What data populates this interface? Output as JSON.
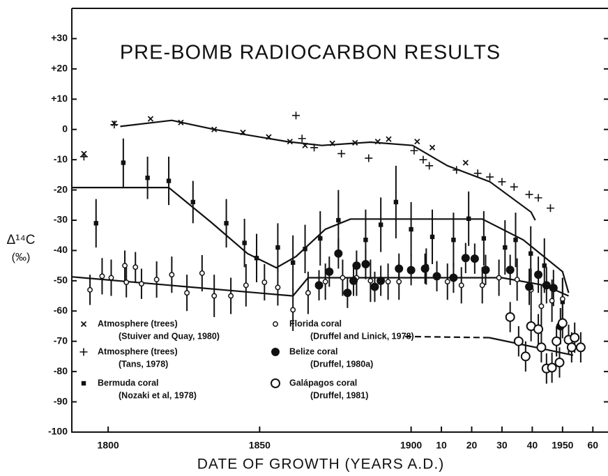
{
  "chart_data": {
    "type": "scatter",
    "title": "PRE-BOMB RADIOCARBON RESULTS",
    "ylabel": "Δ¹⁴C",
    "yunit": "(‰)",
    "xlabel": "DATE OF GROWTH (YEARS A.D.)",
    "xlim": [
      1788,
      1965
    ],
    "ylim": [
      -100,
      40
    ],
    "xticks": [
      1800,
      1850,
      1900,
      {
        "value": 1910,
        "label": "10"
      },
      {
        "value": 1920,
        "label": "20"
      },
      {
        "value": 1930,
        "label": "30"
      },
      {
        "value": 1940,
        "label": "40"
      },
      1950,
      {
        "value": 1960,
        "label": "60"
      }
    ],
    "yticks": [
      {
        "value": 30,
        "label": "+30"
      },
      {
        "value": 20,
        "label": "+20"
      },
      {
        "value": 10,
        "label": "+10"
      },
      0,
      -10,
      -20,
      -30,
      -40,
      -50,
      -60,
      -70,
      -80,
      -90,
      -100
    ],
    "series": [
      {
        "name": "Atmosphere (trees)",
        "source": "(Stuiver and Quay, 1980)",
        "marker": "x",
        "color": "#111111",
        "x": [
          1792,
          1802,
          1814,
          1824,
          1835,
          1844.5,
          1853,
          1860,
          1865,
          1874,
          1881.5,
          1889,
          1892.6,
          1902,
          1907,
          1918
        ],
        "y": [
          -8,
          2,
          3.5,
          2.3,
          0,
          -1,
          -2.5,
          -4,
          -5.3,
          -4.6,
          -4.4,
          -4,
          -3.2,
          -4,
          -6,
          -11
        ]
      },
      {
        "name": "Atmosphere (trees)",
        "source": "(Tans, 1978)",
        "marker": "plus",
        "color": "#111111",
        "x": [
          1792,
          1802,
          1862,
          1864,
          1868,
          1877,
          1886,
          1901,
          1904,
          1906,
          1915,
          1922,
          1926,
          1930,
          1934,
          1939,
          1942,
          1946
        ],
        "y": [
          -9,
          1.6,
          4.6,
          -3,
          -6,
          -8,
          -9.5,
          -7,
          -10,
          -12,
          -13.4,
          -14.5,
          -15.7,
          -17.3,
          -19,
          -21.5,
          -22.6,
          -26
        ]
      },
      {
        "name": "Bermuda coral",
        "source": "(Nozaki et al, 1978)",
        "marker": "square",
        "color": "#111111",
        "x": [
          1796,
          1805,
          1813,
          1820,
          1828,
          1839,
          1845,
          1849,
          1856,
          1861,
          1865,
          1870,
          1876,
          1885,
          1890,
          1895,
          1900,
          1907,
          1914,
          1919,
          1924,
          1931,
          1934.5,
          1939.5,
          1944,
          1950
        ],
        "y": [
          -31,
          -11,
          -16,
          -17,
          -24,
          -31,
          -37.5,
          -42.5,
          -39,
          -44,
          -39.5,
          -36,
          -30,
          -36.5,
          -31.5,
          -24,
          -33,
          -35.5,
          -36.5,
          -29.5,
          -36,
          -39,
          -36.5,
          -41,
          -45,
          -57
        ],
        "errors": [
          8,
          8,
          7,
          8,
          7,
          8,
          8,
          8,
          8,
          9,
          8,
          9,
          10,
          10,
          9,
          12,
          9,
          9,
          9,
          9,
          9,
          9,
          9,
          9,
          9,
          8
        ]
      },
      {
        "name": "Florida coral",
        "source": "(Druffel and Linick, 1978)",
        "marker": "small-circle",
        "color": "#111111",
        "x": [
          1794,
          1798,
          1801,
          1805.5,
          1806,
          1809,
          1811,
          1816,
          1821,
          1826,
          1831,
          1835,
          1840.5,
          1845.5,
          1851.6,
          1856,
          1861,
          1866,
          1871.7,
          1877.4,
          1882,
          1886.6,
          1892.4,
          1896,
          1905,
          1912,
          1916.6,
          1923.5,
          1929,
          1935,
          1939.6,
          1943,
          1946.5,
          1950
        ],
        "y": [
          -53,
          -48.5,
          -49,
          -45,
          -50.5,
          -45.5,
          -51,
          -49.6,
          -48,
          -54,
          -47.5,
          -55,
          -55,
          -51.5,
          -50.5,
          -52.2,
          -59.6,
          -54,
          -50.3,
          -49,
          -49,
          -50,
          -50.3,
          -50.3,
          -45.3,
          -50.3,
          -51.5,
          -51.5,
          -49,
          -49.6,
          -53,
          -58.4,
          -56.6,
          -56
        ],
        "errors": [
          5,
          6,
          6,
          5,
          5,
          5,
          5,
          6,
          6,
          6,
          6,
          7,
          6,
          7,
          6,
          6,
          7,
          7,
          6,
          6,
          6,
          7,
          6,
          6,
          6,
          6,
          6,
          6,
          6,
          7,
          7,
          7,
          7,
          7
        ]
      },
      {
        "name": "Belize coral",
        "source": "(Druffel, 1980a)",
        "marker": "filled-circle",
        "color": "#111111",
        "x": [
          1869.6,
          1873,
          1876,
          1879,
          1881,
          1882,
          1885,
          1888,
          1890,
          1896,
          1900,
          1904.6,
          1908.5,
          1914,
          1918,
          1921,
          1924.6,
          1932.7,
          1939,
          1942,
          1944.7,
          1947,
          1949.3
        ],
        "y": [
          -51.5,
          -47,
          -41,
          -54,
          -50,
          -45,
          -44.5,
          -52,
          -50,
          -46,
          -46.5,
          -46,
          -48.5,
          -49,
          -42.5,
          -42.7,
          -46.4,
          -46.4,
          -52,
          -48,
          -51.5,
          -52.4,
          -65
        ],
        "errors": [
          5,
          5,
          5,
          5,
          5,
          5,
          5,
          5,
          5,
          5,
          5,
          5,
          5,
          5,
          5,
          5,
          5,
          5,
          6,
          6,
          6,
          6,
          6
        ]
      },
      {
        "name": "Galápagos coral",
        "source": "(Druffel, 1981)",
        "marker": "open-circle",
        "color": "#111111",
        "x": [
          1932.7,
          1935.5,
          1937.8,
          1939.6,
          1942,
          1943,
          1944.7,
          1946.5,
          1948,
          1949,
          1950,
          1952,
          1953,
          1954,
          1956
        ],
        "y": [
          -62,
          -70,
          -75,
          -65,
          -66,
          -72,
          -79,
          -78.7,
          -70,
          -77,
          -64,
          -69.5,
          -72,
          -68.8,
          -72
        ],
        "errors": [
          5,
          5,
          5,
          5,
          5,
          5,
          5,
          5,
          5,
          5,
          5,
          5,
          5,
          5,
          5
        ]
      }
    ],
    "trend_lines": [
      {
        "x": [
          1804,
          1821,
          1835,
          1859,
          1870.5,
          1886.6,
          1900.5,
          1912,
          1926,
          1939.6,
          1941
        ],
        "y": [
          1,
          3,
          0,
          -4,
          -5.3,
          -4.2,
          -5.3,
          -12,
          -17.3,
          -27.3,
          -30
        ],
        "dashed": false
      },
      {
        "x": [
          1788,
          1820,
          1834,
          1846,
          1855.5,
          1862,
          1871.7,
          1880,
          1923.5,
          1937,
          1950,
          1952
        ],
        "y": [
          -19.2,
          -19.2,
          -30.7,
          -41,
          -45.7,
          -42,
          -33,
          -29.6,
          -29.6,
          -36.5,
          -47,
          -54
        ],
        "dashed": false
      },
      {
        "x": [
          1788,
          1861,
          1866,
          1898,
          1930,
          1944,
          1952
        ],
        "y": [
          -48.7,
          -55,
          -49,
          -49,
          -49,
          -51.5,
          -55
        ],
        "dashed": false
      },
      {
        "x": [
          1898,
          1925.8
        ],
        "y": [
          -68.4,
          -68.8
        ],
        "dashed": true
      },
      {
        "x": [
          1925.8,
          1953.5
        ],
        "y": [
          -68.8,
          -74.6
        ],
        "dashed": false
      }
    ]
  }
}
